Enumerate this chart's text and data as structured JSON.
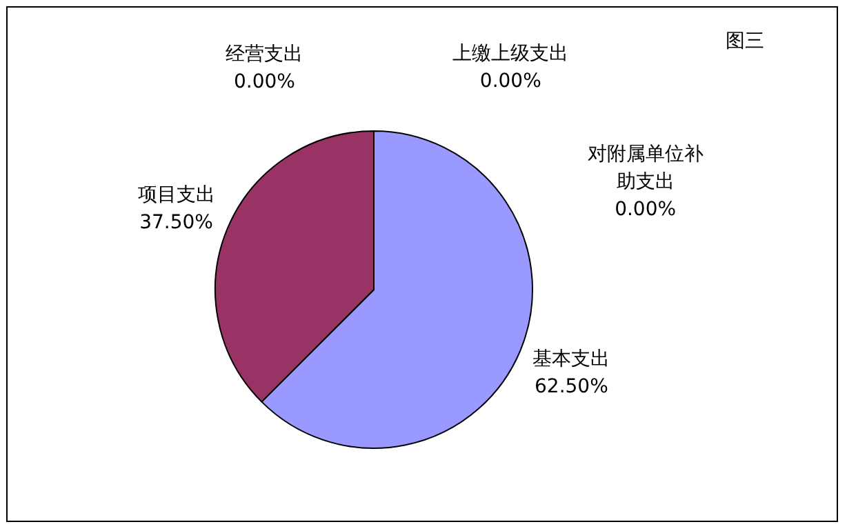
{
  "chart_data": {
    "type": "pie",
    "title": "图三",
    "categories": [
      "基本支出",
      "项目支出",
      "经营支出",
      "上缴上级支出",
      "对附属单位补助支出"
    ],
    "values": [
      62.5,
      37.5,
      0,
      0,
      0
    ],
    "value_labels": [
      "62.50%",
      "37.50%",
      "0.00%",
      "0.00%",
      "0.00%"
    ],
    "colors": [
      "#9999ff",
      "#993366",
      "#ffffcc",
      "#ccffff",
      "#660066"
    ]
  }
}
